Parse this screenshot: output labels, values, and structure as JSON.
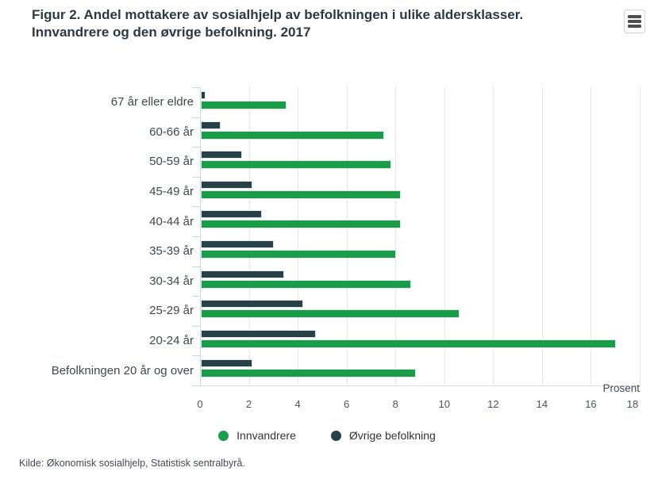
{
  "chart_data": {
    "type": "bar",
    "orientation": "horizontal",
    "title": "Figur 2. Andel mottakere av sosialhjelp av befolkningen i ulike aldersklasser. Innvandrere og den øvrige befolkning. 2017",
    "categories": [
      "67 år eller eldre",
      "60-66 år",
      "50-59 år",
      "45-49 år",
      "40-44 år",
      "35-39 år",
      "30-34 år",
      "25-29 år",
      "20-24 år",
      "Befolkningen 20 år og over"
    ],
    "series": [
      {
        "name": "Innvandrere",
        "color": "#1a9d49",
        "values": [
          3.5,
          7.5,
          7.8,
          8.2,
          8.2,
          8.0,
          8.6,
          10.6,
          17.0,
          8.8
        ]
      },
      {
        "name": "Øvrige befolkning",
        "color": "#274247",
        "values": [
          0.2,
          0.8,
          1.7,
          2.1,
          2.5,
          3.0,
          3.4,
          4.2,
          4.7,
          2.1
        ]
      }
    ],
    "bar_order_per_category": [
      "Øvrige befolkning",
      "Innvandrere"
    ],
    "xlabel": "Prosent",
    "xlim": [
      0,
      18
    ],
    "xticks": [
      0,
      2,
      4,
      6,
      8,
      10,
      12,
      14,
      16,
      18
    ],
    "grid": true,
    "legend_position": "bottom"
  },
  "menu": {
    "icon": "hamburger-icon"
  },
  "source": "Kilde: Økonomisk sosialhjelp, Statistisk sentralbyrå."
}
